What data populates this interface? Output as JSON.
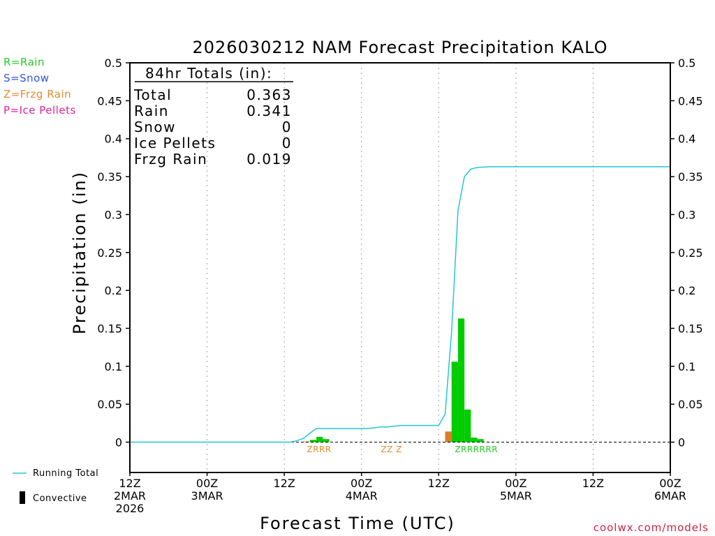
{
  "chart_data": {
    "type": "bar",
    "title": "2026030212 NAM Forecast Precipitation KALO",
    "xlabel": "Forecast Time (UTC)",
    "ylabel": "Precipitation (in)",
    "ylim": [
      -0.04,
      0.5
    ],
    "yticks": [
      "0.5",
      "0.45",
      "0.4",
      "0.35",
      "0.3",
      "0.25",
      "0.2",
      "0.15",
      "0.1",
      "0.05",
      "0"
    ],
    "ytick_values": [
      0.5,
      0.45,
      0.4,
      0.35,
      0.3,
      0.25,
      0.2,
      0.15,
      0.1,
      0.05,
      0
    ],
    "x_hours_range": [
      0,
      84
    ],
    "xticks": [
      {
        "hour": 0,
        "l1": "12Z",
        "l2": "2MAR",
        "l3": "2026"
      },
      {
        "hour": 12,
        "l1": "00Z",
        "l2": "3MAR",
        "l3": ""
      },
      {
        "hour": 24,
        "l1": "12Z",
        "l2": "",
        "l3": ""
      },
      {
        "hour": 36,
        "l1": "00Z",
        "l2": "4MAR",
        "l3": ""
      },
      {
        "hour": 48,
        "l1": "12Z",
        "l2": "",
        "l3": ""
      },
      {
        "hour": 60,
        "l1": "00Z",
        "l2": "5MAR",
        "l3": ""
      },
      {
        "hour": 72,
        "l1": "12Z",
        "l2": "",
        "l3": ""
      },
      {
        "hour": 84,
        "l1": "00Z",
        "l2": "6MAR",
        "l3": ""
      }
    ],
    "vgrid_hours": [
      12,
      24,
      36,
      48,
      60,
      72
    ],
    "bars_hour_width": 1,
    "bars": [
      {
        "hour": 27,
        "value": 0.0008,
        "ptype": "Z"
      },
      {
        "hour": 28,
        "value": 0.003,
        "ptype": "R"
      },
      {
        "hour": 29,
        "value": 0.007,
        "ptype": "R"
      },
      {
        "hour": 30,
        "value": 0.004,
        "ptype": "R"
      },
      {
        "hour": 49,
        "value": 0.014,
        "ptype": "Z"
      },
      {
        "hour": 50,
        "value": 0.106,
        "ptype": "R"
      },
      {
        "hour": 51,
        "value": 0.163,
        "ptype": "R"
      },
      {
        "hour": 52,
        "value": 0.043,
        "ptype": "R"
      },
      {
        "hour": 53,
        "value": 0.006,
        "ptype": "R"
      },
      {
        "hour": 54,
        "value": 0.004,
        "ptype": "R"
      }
    ],
    "running_total": [
      [
        0,
        0
      ],
      [
        25,
        0
      ],
      [
        26,
        0.002
      ],
      [
        27,
        0.005
      ],
      [
        28,
        0.012
      ],
      [
        29,
        0.018
      ],
      [
        33,
        0.018
      ],
      [
        35,
        0.018
      ],
      [
        37,
        0.018
      ],
      [
        38,
        0.019
      ],
      [
        39,
        0.02
      ],
      [
        40,
        0.02
      ],
      [
        41,
        0.021
      ],
      [
        42,
        0.022
      ],
      [
        44,
        0.022
      ],
      [
        45,
        0.022
      ],
      [
        46,
        0.022
      ],
      [
        47,
        0.022
      ],
      [
        48,
        0.022
      ],
      [
        49,
        0.037
      ],
      [
        50,
        0.145
      ],
      [
        51,
        0.305
      ],
      [
        52,
        0.35
      ],
      [
        53,
        0.36
      ],
      [
        54,
        0.362
      ],
      [
        56,
        0.363
      ],
      [
        84,
        0.363
      ]
    ],
    "type_labels": [
      {
        "hour": 27.5,
        "text": "ZRRR",
        "color": "#e08a30"
      },
      {
        "hour": 39,
        "text": "ZZ Z",
        "color": "#e08a30"
      },
      {
        "hour": 50.5,
        "text": "ZRRRRRR",
        "color": "#22cc22"
      }
    ],
    "colors": {
      "rain": "#00cc00",
      "frzg": "#e07b28",
      "line": "#22c8d0",
      "grid": "#a0a0a0"
    },
    "totals_box": {
      "header": "84hr Totals (in):",
      "rows": [
        {
          "label": "Total",
          "value": "0.363"
        },
        {
          "label": "Rain",
          "value": "0.341"
        },
        {
          "label": "Snow",
          "value": "0"
        },
        {
          "label": "Ice Pellets",
          "value": "0"
        },
        {
          "label": "Frzg Rain",
          "value": "0.019"
        }
      ]
    }
  },
  "legend": {
    "rain": "R=Rain",
    "snow": "S=Snow",
    "frzg": "Z=Frzg Rain",
    "ice": "P=Ice Pellets",
    "rain_color": "#22cc22",
    "snow_color": "#3355dd",
    "frzg_color": "#e08a30",
    "ice_color": "#dd2299"
  },
  "bottom_legend": {
    "running_total": "Running Total",
    "convective": "Convective"
  },
  "credit": "coolwx.com/models"
}
